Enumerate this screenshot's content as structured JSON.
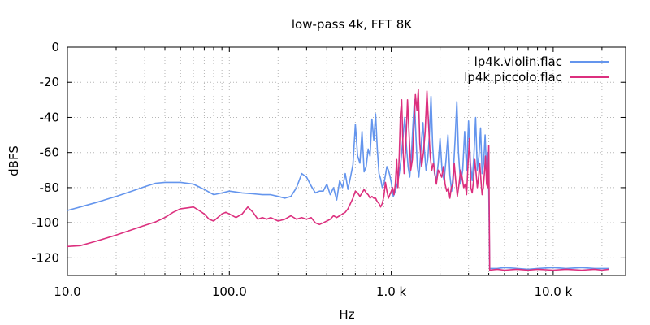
{
  "chart_data": {
    "type": "line",
    "title": "low-pass 4k, FFT 8K",
    "xlabel": "Hz",
    "ylabel": "dBFS",
    "xscale": "log",
    "xlim": [
      10,
      28000
    ],
    "ylim": [
      -130,
      0
    ],
    "xticks": [
      {
        "value": 10,
        "label": "10.0"
      },
      {
        "value": 100,
        "label": "100.0"
      },
      {
        "value": 1000,
        "label": "1.0 k"
      },
      {
        "value": 10000,
        "label": "10.0 k"
      }
    ],
    "yticks": [
      {
        "value": 0,
        "label": "0"
      },
      {
        "value": -20,
        "label": "-20"
      },
      {
        "value": -40,
        "label": "-40"
      },
      {
        "value": -60,
        "label": "-60"
      },
      {
        "value": -80,
        "label": "-80"
      },
      {
        "value": -100,
        "label": "-100"
      },
      {
        "value": -120,
        "label": "-120"
      }
    ],
    "grid": true,
    "legend_position": "top-right",
    "series": [
      {
        "name": "lp4k.violin.flac",
        "color": "#6495ed",
        "points": [
          [
            10,
            -93
          ],
          [
            12,
            -91
          ],
          [
            15,
            -88.5
          ],
          [
            20,
            -85
          ],
          [
            25,
            -82
          ],
          [
            30,
            -79.5
          ],
          [
            35,
            -77.5
          ],
          [
            40,
            -77
          ],
          [
            50,
            -77
          ],
          [
            60,
            -78
          ],
          [
            70,
            -81
          ],
          [
            80,
            -84
          ],
          [
            90,
            -83
          ],
          [
            100,
            -82
          ],
          [
            110,
            -82.5
          ],
          [
            120,
            -83
          ],
          [
            140,
            -83.5
          ],
          [
            160,
            -84
          ],
          [
            180,
            -84
          ],
          [
            200,
            -85
          ],
          [
            220,
            -86
          ],
          [
            240,
            -85
          ],
          [
            260,
            -80
          ],
          [
            280,
            -72
          ],
          [
            300,
            -74
          ],
          [
            320,
            -79
          ],
          [
            340,
            -83
          ],
          [
            360,
            -82
          ],
          [
            380,
            -82
          ],
          [
            400,
            -78
          ],
          [
            420,
            -84
          ],
          [
            440,
            -80
          ],
          [
            460,
            -87
          ],
          [
            480,
            -76
          ],
          [
            500,
            -80
          ],
          [
            520,
            -72
          ],
          [
            540,
            -81
          ],
          [
            560,
            -74
          ],
          [
            580,
            -67
          ],
          [
            600,
            -44
          ],
          [
            620,
            -62
          ],
          [
            640,
            -66
          ],
          [
            660,
            -48
          ],
          [
            680,
            -71
          ],
          [
            700,
            -68
          ],
          [
            720,
            -58
          ],
          [
            740,
            -62
          ],
          [
            760,
            -41
          ],
          [
            780,
            -53
          ],
          [
            800,
            -38
          ],
          [
            820,
            -58
          ],
          [
            840,
            -72
          ],
          [
            860,
            -75
          ],
          [
            880,
            -80
          ],
          [
            900,
            -78
          ],
          [
            920,
            -73
          ],
          [
            940,
            -68
          ],
          [
            960,
            -70
          ],
          [
            980,
            -73
          ],
          [
            1000,
            -77
          ],
          [
            1030,
            -85
          ],
          [
            1060,
            -82
          ],
          [
            1090,
            -78
          ],
          [
            1120,
            -72
          ],
          [
            1150,
            -64
          ],
          [
            1180,
            -52
          ],
          [
            1210,
            -40
          ],
          [
            1240,
            -56
          ],
          [
            1270,
            -68
          ],
          [
            1300,
            -74
          ],
          [
            1330,
            -62
          ],
          [
            1360,
            -45
          ],
          [
            1390,
            -30
          ],
          [
            1420,
            -50
          ],
          [
            1450,
            -68
          ],
          [
            1480,
            -74
          ],
          [
            1510,
            -64
          ],
          [
            1540,
            -52
          ],
          [
            1570,
            -43
          ],
          [
            1600,
            -58
          ],
          [
            1640,
            -70
          ],
          [
            1680,
            -64
          ],
          [
            1720,
            -50
          ],
          [
            1760,
            -28
          ],
          [
            1800,
            -56
          ],
          [
            1850,
            -72
          ],
          [
            1900,
            -76
          ],
          [
            1950,
            -66
          ],
          [
            2000,
            -52
          ],
          [
            2060,
            -70
          ],
          [
            2120,
            -76
          ],
          [
            2180,
            -64
          ],
          [
            2240,
            -50
          ],
          [
            2300,
            -73
          ],
          [
            2360,
            -82
          ],
          [
            2420,
            -70
          ],
          [
            2480,
            -52
          ],
          [
            2540,
            -31
          ],
          [
            2600,
            -60
          ],
          [
            2680,
            -78
          ],
          [
            2760,
            -70
          ],
          [
            2840,
            -48
          ],
          [
            2920,
            -70
          ],
          [
            3000,
            -42
          ],
          [
            3080,
            -66
          ],
          [
            3160,
            -76
          ],
          [
            3240,
            -62
          ],
          [
            3320,
            -40
          ],
          [
            3400,
            -70
          ],
          [
            3480,
            -62
          ],
          [
            3560,
            -46
          ],
          [
            3640,
            -72
          ],
          [
            3720,
            -66
          ],
          [
            3800,
            -50
          ],
          [
            3880,
            -71
          ],
          [
            3950,
            -60
          ],
          [
            4000,
            -81
          ],
          [
            4050,
            -126
          ],
          [
            4500,
            -126
          ],
          [
            5000,
            -125.5
          ],
          [
            6000,
            -126
          ],
          [
            7000,
            -126.5
          ],
          [
            8000,
            -126
          ],
          [
            10000,
            -125.5
          ],
          [
            12000,
            -126
          ],
          [
            15000,
            -125.5
          ],
          [
            18000,
            -126
          ],
          [
            20000,
            -126
          ],
          [
            22050,
            -126
          ]
        ]
      },
      {
        "name": "lp4k.piccolo.flac",
        "color": "#dc2f7e",
        "points": [
          [
            10,
            -113.5
          ],
          [
            12,
            -113
          ],
          [
            15,
            -110.5
          ],
          [
            20,
            -107
          ],
          [
            25,
            -104
          ],
          [
            30,
            -101.5
          ],
          [
            35,
            -99.5
          ],
          [
            40,
            -97
          ],
          [
            45,
            -94
          ],
          [
            50,
            -92
          ],
          [
            55,
            -91.5
          ],
          [
            60,
            -91
          ],
          [
            65,
            -93
          ],
          [
            70,
            -95
          ],
          [
            75,
            -98
          ],
          [
            80,
            -99
          ],
          [
            90,
            -95
          ],
          [
            95,
            -94
          ],
          [
            100,
            -95
          ],
          [
            110,
            -97
          ],
          [
            120,
            -95
          ],
          [
            130,
            -91
          ],
          [
            140,
            -94
          ],
          [
            150,
            -98
          ],
          [
            160,
            -97
          ],
          [
            170,
            -98
          ],
          [
            180,
            -97
          ],
          [
            200,
            -99
          ],
          [
            220,
            -98
          ],
          [
            240,
            -96
          ],
          [
            260,
            -98
          ],
          [
            280,
            -97
          ],
          [
            300,
            -98
          ],
          [
            320,
            -97
          ],
          [
            340,
            -100
          ],
          [
            360,
            -101
          ],
          [
            380,
            -100
          ],
          [
            400,
            -99
          ],
          [
            420,
            -98
          ],
          [
            440,
            -96
          ],
          [
            460,
            -97
          ],
          [
            480,
            -96
          ],
          [
            500,
            -95
          ],
          [
            520,
            -94
          ],
          [
            540,
            -92
          ],
          [
            560,
            -89
          ],
          [
            580,
            -86
          ],
          [
            600,
            -82
          ],
          [
            620,
            -83
          ],
          [
            640,
            -85
          ],
          [
            660,
            -83
          ],
          [
            680,
            -81
          ],
          [
            700,
            -83
          ],
          [
            720,
            -84
          ],
          [
            740,
            -86
          ],
          [
            760,
            -85
          ],
          [
            780,
            -86
          ],
          [
            800,
            -86
          ],
          [
            820,
            -88
          ],
          [
            840,
            -89
          ],
          [
            860,
            -91
          ],
          [
            880,
            -89
          ],
          [
            900,
            -85
          ],
          [
            920,
            -77
          ],
          [
            940,
            -82
          ],
          [
            960,
            -86
          ],
          [
            980,
            -84
          ],
          [
            1000,
            -82
          ],
          [
            1020,
            -80
          ],
          [
            1040,
            -84
          ],
          [
            1060,
            -78
          ],
          [
            1080,
            -64
          ],
          [
            1100,
            -80
          ],
          [
            1120,
            -62
          ],
          [
            1140,
            -38
          ],
          [
            1160,
            -30
          ],
          [
            1180,
            -55
          ],
          [
            1200,
            -72
          ],
          [
            1230,
            -56
          ],
          [
            1260,
            -30
          ],
          [
            1290,
            -50
          ],
          [
            1320,
            -70
          ],
          [
            1350,
            -64
          ],
          [
            1380,
            -45
          ],
          [
            1410,
            -27
          ],
          [
            1440,
            -36
          ],
          [
            1470,
            -24
          ],
          [
            1500,
            -55
          ],
          [
            1540,
            -68
          ],
          [
            1580,
            -60
          ],
          [
            1620,
            -48
          ],
          [
            1660,
            -25
          ],
          [
            1700,
            -44
          ],
          [
            1740,
            -62
          ],
          [
            1780,
            -70
          ],
          [
            1820,
            -66
          ],
          [
            1860,
            -72
          ],
          [
            1900,
            -78
          ],
          [
            1950,
            -70
          ],
          [
            2000,
            -72
          ],
          [
            2050,
            -74
          ],
          [
            2100,
            -68
          ],
          [
            2150,
            -78
          ],
          [
            2200,
            -82
          ],
          [
            2250,
            -80
          ],
          [
            2300,
            -86
          ],
          [
            2350,
            -80
          ],
          [
            2400,
            -78
          ],
          [
            2450,
            -66
          ],
          [
            2500,
            -76
          ],
          [
            2560,
            -85
          ],
          [
            2620,
            -78
          ],
          [
            2680,
            -70
          ],
          [
            2740,
            -74
          ],
          [
            2800,
            -80
          ],
          [
            2860,
            -78
          ],
          [
            2920,
            -84
          ],
          [
            2980,
            -66
          ],
          [
            3040,
            -52
          ],
          [
            3100,
            -80
          ],
          [
            3160,
            -83
          ],
          [
            3220,
            -76
          ],
          [
            3280,
            -64
          ],
          [
            3340,
            -72
          ],
          [
            3400,
            -80
          ],
          [
            3460,
            -74
          ],
          [
            3520,
            -66
          ],
          [
            3580,
            -76
          ],
          [
            3640,
            -84
          ],
          [
            3700,
            -80
          ],
          [
            3760,
            -72
          ],
          [
            3820,
            -62
          ],
          [
            3880,
            -78
          ],
          [
            3940,
            -80
          ],
          [
            4000,
            -56
          ],
          [
            4050,
            -127
          ],
          [
            4500,
            -126.5
          ],
          [
            5000,
            -127
          ],
          [
            6000,
            -126.5
          ],
          [
            7000,
            -127
          ],
          [
            8000,
            -126.5
          ],
          [
            10000,
            -127
          ],
          [
            12000,
            -126.5
          ],
          [
            15000,
            -127
          ],
          [
            18000,
            -126.5
          ],
          [
            20000,
            -127
          ],
          [
            22050,
            -126.5
          ]
        ]
      }
    ]
  }
}
